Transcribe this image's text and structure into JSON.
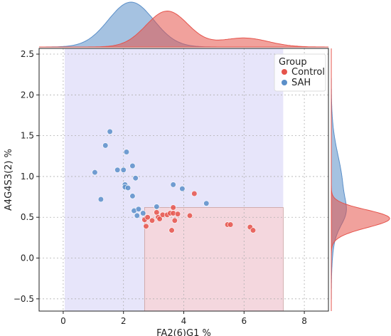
{
  "chart_data": {
    "type": "scatter",
    "xlabel": "FA2(6)G1 %",
    "ylabel": "A4G4S3(2) %",
    "xlim": [
      -0.8,
      8.8
    ],
    "ylim": [
      -0.65,
      2.57
    ],
    "x_ticks": [
      0,
      2,
      4,
      6,
      8
    ],
    "y_ticks": [
      -0.5,
      0.0,
      0.5,
      1.0,
      1.5,
      2.0,
      2.5
    ],
    "x_tick_labels": [
      "0",
      "2",
      "4",
      "6",
      "8"
    ],
    "y_tick_labels": [
      "−0.5",
      "0.0",
      "0.5",
      "1.0",
      "1.5",
      "2.0",
      "2.5"
    ],
    "grid": true,
    "legend": {
      "title": "Group",
      "placement": "top-right",
      "entries": [
        {
          "name": "Control",
          "color": "#e5534b"
        },
        {
          "name": "SAH",
          "color": "#5b8fc9"
        }
      ]
    },
    "regions": [
      {
        "name": "SAH region",
        "x": [
          0.05,
          7.3
        ],
        "y": [
          -0.65,
          2.57
        ],
        "color": "#c9c6f5"
      },
      {
        "name": "Control region",
        "x": [
          2.7,
          7.3
        ],
        "y": [
          -0.65,
          0.62
        ],
        "color": "#fad2d2"
      }
    ],
    "series": [
      {
        "name": "SAH",
        "color": "#5b8fc9",
        "points": [
          [
            1.05,
            1.05
          ],
          [
            1.25,
            0.72
          ],
          [
            1.4,
            1.38
          ],
          [
            1.55,
            1.55
          ],
          [
            1.8,
            1.08
          ],
          [
            2.0,
            1.08
          ],
          [
            2.05,
            0.9
          ],
          [
            2.05,
            0.87
          ],
          [
            2.1,
            1.3
          ],
          [
            2.15,
            0.86
          ],
          [
            2.3,
            1.13
          ],
          [
            2.3,
            0.76
          ],
          [
            2.35,
            0.58
          ],
          [
            2.4,
            0.98
          ],
          [
            2.45,
            0.52
          ],
          [
            2.5,
            0.6
          ],
          [
            2.65,
            0.55
          ],
          [
            3.1,
            0.63
          ],
          [
            3.65,
            0.9
          ],
          [
            3.95,
            0.85
          ],
          [
            4.75,
            0.67
          ]
        ]
      },
      {
        "name": "Control",
        "color": "#e5534b",
        "points": [
          [
            2.7,
            0.47
          ],
          [
            2.75,
            0.39
          ],
          [
            2.8,
            0.5
          ],
          [
            2.95,
            0.46
          ],
          [
            3.1,
            0.56
          ],
          [
            3.15,
            0.5
          ],
          [
            3.2,
            0.48
          ],
          [
            3.3,
            0.53
          ],
          [
            3.45,
            0.53
          ],
          [
            3.55,
            0.55
          ],
          [
            3.6,
            0.34
          ],
          [
            3.65,
            0.62
          ],
          [
            3.65,
            0.55
          ],
          [
            3.7,
            0.46
          ],
          [
            3.8,
            0.54
          ],
          [
            4.2,
            0.52
          ],
          [
            4.35,
            0.79
          ],
          [
            5.45,
            0.41
          ],
          [
            5.55,
            0.41
          ],
          [
            6.2,
            0.38
          ],
          [
            6.3,
            0.34
          ]
        ]
      }
    ],
    "marginal_x": {
      "SAH": {
        "peaks": [
          [
            2.25,
            1.0,
            0.75
          ]
        ]
      },
      "Control": {
        "peaks": [
          [
            3.45,
            0.8,
            0.7
          ],
          [
            6.0,
            0.2,
            0.8
          ]
        ]
      }
    },
    "marginal_y": {
      "SAH": {
        "peaks": [
          [
            0.85,
            0.22,
            0.4
          ],
          [
            0.55,
            0.12,
            0.15
          ]
        ]
      },
      "Control": {
        "peaks": [
          [
            0.5,
            1.0,
            0.1
          ],
          [
            0.38,
            0.25,
            0.1
          ]
        ]
      }
    }
  }
}
